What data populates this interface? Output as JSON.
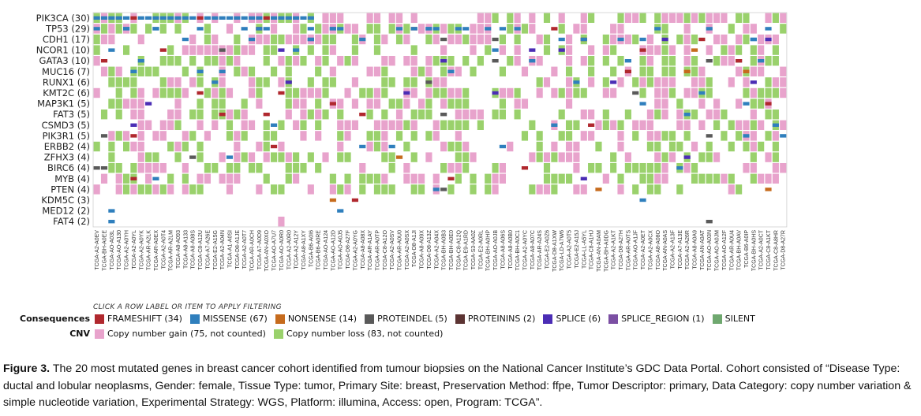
{
  "chart_data": {
    "type": "heatmap",
    "genes": [
      "PIK3CA (30)",
      "TP53 (29)",
      "CDH1 (17)",
      "NCOR1 (10)",
      "GATA3 (10)",
      "MUC16 (7)",
      "RUNX1 (6)",
      "KMT2C (6)",
      "MAP3K1 (5)",
      "FAT3 (5)",
      "CSMD3 (5)",
      "PIK3R1 (5)",
      "ERBB2 (4)",
      "ZFHX3 (4)",
      "BIRC6 (4)",
      "MYB (4)",
      "PTEN (4)",
      "KDM5C (3)",
      "MED12 (2)",
      "FAT4 (2)"
    ],
    "samples": [
      "TCGA-A2-A0EV",
      "TCGA-BH-A0EE",
      "TCGA-AO-A03L",
      "TCGA-AO-A130",
      "TCGA-A2-A0YH",
      "TCGA-A2-A0YL",
      "TCGA-A2-A0YK",
      "TCGA-AR-A2LK",
      "TCGA-AR-A0EX",
      "TCGA-A2-A0T4",
      "TCGA-AR-A2LM",
      "TCGA-A8-A093",
      "TCGA-A8-A133",
      "TCGA-A8-A08S",
      "TCGA-C8-A12U",
      "TCGA-A7-A26E",
      "TCGA-E2-A15G",
      "TCGA-A2-A04N",
      "TCGA-A1-A0SI",
      "TCGA-D8-A1JE",
      "TCGA-A2-A0T7",
      "TCGA-AR-A0CH",
      "TCGA-A7-A0D9",
      "TCGA-AN-A0XO",
      "TCGA-AO-A7U7",
      "TCGA-AO-A0R0",
      "TCGA-A2-A0R0",
      "TCGA-A2-A12Y",
      "TCGA-A8-A1XY",
      "TCGA-B6-A0I6",
      "TCGA-B6-A0RE",
      "TCGA-AO-A124",
      "TCGA-AO-A12D",
      "TCGA-AO-A0J5",
      "TCGA-D8-A27F",
      "TCGA-A2-A0YG",
      "TCGA-A8-A08X",
      "TCGA-AR-A1AY",
      "TCGA-AR-A0TP",
      "TCGA-C8-A12O",
      "TCGA-A2-A0SV",
      "TCGA-AR-A0U0",
      "TCGA-A2-A0SX",
      "TCGA-D8-A1JI",
      "TCGA-A8-A09X",
      "TCGA-D8-A13Z",
      "TCGA-A2-A04X",
      "TCGA-BH-A0B3",
      "TCGA-BH-A0E0",
      "TCGA-C8-A12Q",
      "TCGA-E9-A1RD",
      "TCGA-S3-AA0Z",
      "TCGA-E2-A0RL",
      "TCGA-BH-A0HP",
      "TCGA-AO-A0JB",
      "TCGA-A8-A06S",
      "TCGA-A8-A0B0",
      "TCGA-BH-A0C1",
      "TCGA-A2-A0YC",
      "TCGA-A8-A07C",
      "TCGA-AR-A24S",
      "TCGA-E2-A0Z6",
      "TCGA-D8-A1XW",
      "TCGA-LD-A7W6",
      "TCGA-A2-A0T5",
      "TCGA-E2-A15J",
      "TCGA-LL-A5YL",
      "TCGA-C8-A1HJ",
      "TCGA-AN-A0AM",
      "TCGA-BH-A0DG",
      "TCGA-A2-A1KT",
      "TCGA-D8-A27H",
      "TCGA-AR-A0TS",
      "TCGA-AO-A1JF",
      "TCGA-A2-A0ET",
      "TCGA-A2-A0CX",
      "TCGA-A8-A08O",
      "TCGA-AN-A0AS",
      "TCGA-A2-A13F",
      "TCGA-A7-A13E",
      "TCGA-A2-A26R",
      "TCGA-A8-A0A9",
      "TCGA-AN-A0AT",
      "TCGA-AO-A03N",
      "TCGA-AO-A0JM",
      "TCGA-AO-A12F",
      "TCGA-AR-A0U4",
      "TCGA-BH-A0AV",
      "TCGA-B6-A0IP",
      "TCGA-BH-A0HS",
      "TCGA-A2-A0CT",
      "TCGA-C8-A1KT",
      "TCGA-C8-A8HR",
      "TCGA-D8-A27R"
    ],
    "consequence_colors": {
      "FRAMESHIFT": "#b0282e",
      "MISSENSE": "#2f7fbd",
      "NONSENSE": "#c66b1d",
      "PROTEINDEL": "#5a5a5a",
      "PROTEININS": "#5c3433",
      "SPLICE": "#4b2db5",
      "SPLICE_REGION": "#7b4fa3",
      "SILENT": "#6fa86f"
    },
    "cnv_colors": {
      "gain": "#e8a3cc",
      "loss": "#9ad16c"
    },
    "grid": true
  },
  "legend": {
    "hint": "CLICK A ROW LABEL OR ITEM TO APPLY FILTERING",
    "consequences_title": "Consequences",
    "consequences": [
      {
        "label": "FRAMESHIFT (34)",
        "key": "FRAMESHIFT"
      },
      {
        "label": "MISSENSE (67)",
        "key": "MISSENSE"
      },
      {
        "label": "NONSENSE (14)",
        "key": "NONSENSE"
      },
      {
        "label": "PROTEINDEL (5)",
        "key": "PROTEINDEL"
      },
      {
        "label": "PROTEININS (2)",
        "key": "PROTEININS"
      },
      {
        "label": "SPLICE (6)",
        "key": "SPLICE"
      },
      {
        "label": "SPLICE_REGION (1)",
        "key": "SPLICE_REGION"
      },
      {
        "label": "SILENT",
        "key": "SILENT"
      }
    ],
    "cnv_title": "CNV",
    "cnv": [
      {
        "label": "Copy number gain (75, not counted)",
        "key": "gain"
      },
      {
        "label": "Copy number loss (83, not counted)",
        "key": "loss"
      }
    ]
  },
  "caption": {
    "figure_label": "Figure 3.",
    "text": " The 20 most mutated genes in breast cancer cohort identified from tumour biopsies on the National Cancer Institute’s GDC Data Portal. Cohort consisted of “Disease Type: ductal and lobular neoplasms, Gender: female, Tissue Type: tumor, Primary Site: breast, Preservation Method: ffpe, Tumor Descriptor: primary, Data Category: copy number variation & simple nucleotide variation, Experimental Strategy: WGS, Platform: illumina, Access: open, Program: TCGA”."
  }
}
